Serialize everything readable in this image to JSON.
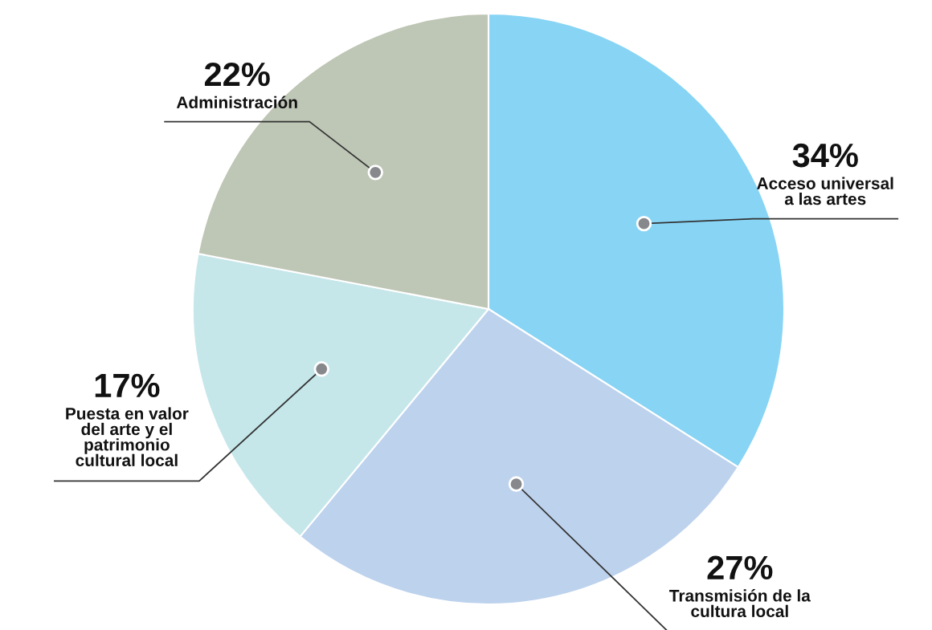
{
  "chart_data": {
    "type": "pie",
    "categories": [
      "Acceso universal\na las artes",
      "Transmisión de la\ncultura local",
      "Puesta en valor\ndel arte y el\npatrimonio\ncultural local",
      "Administración"
    ],
    "values": [
      34,
      27,
      17,
      22
    ],
    "value_labels": [
      "34%",
      "27%",
      "17%",
      "22%"
    ],
    "colors": [
      "#87d4f5",
      "#bdd2ed",
      "#c6e7ea",
      "#bec6b5"
    ],
    "legend": false
  }
}
